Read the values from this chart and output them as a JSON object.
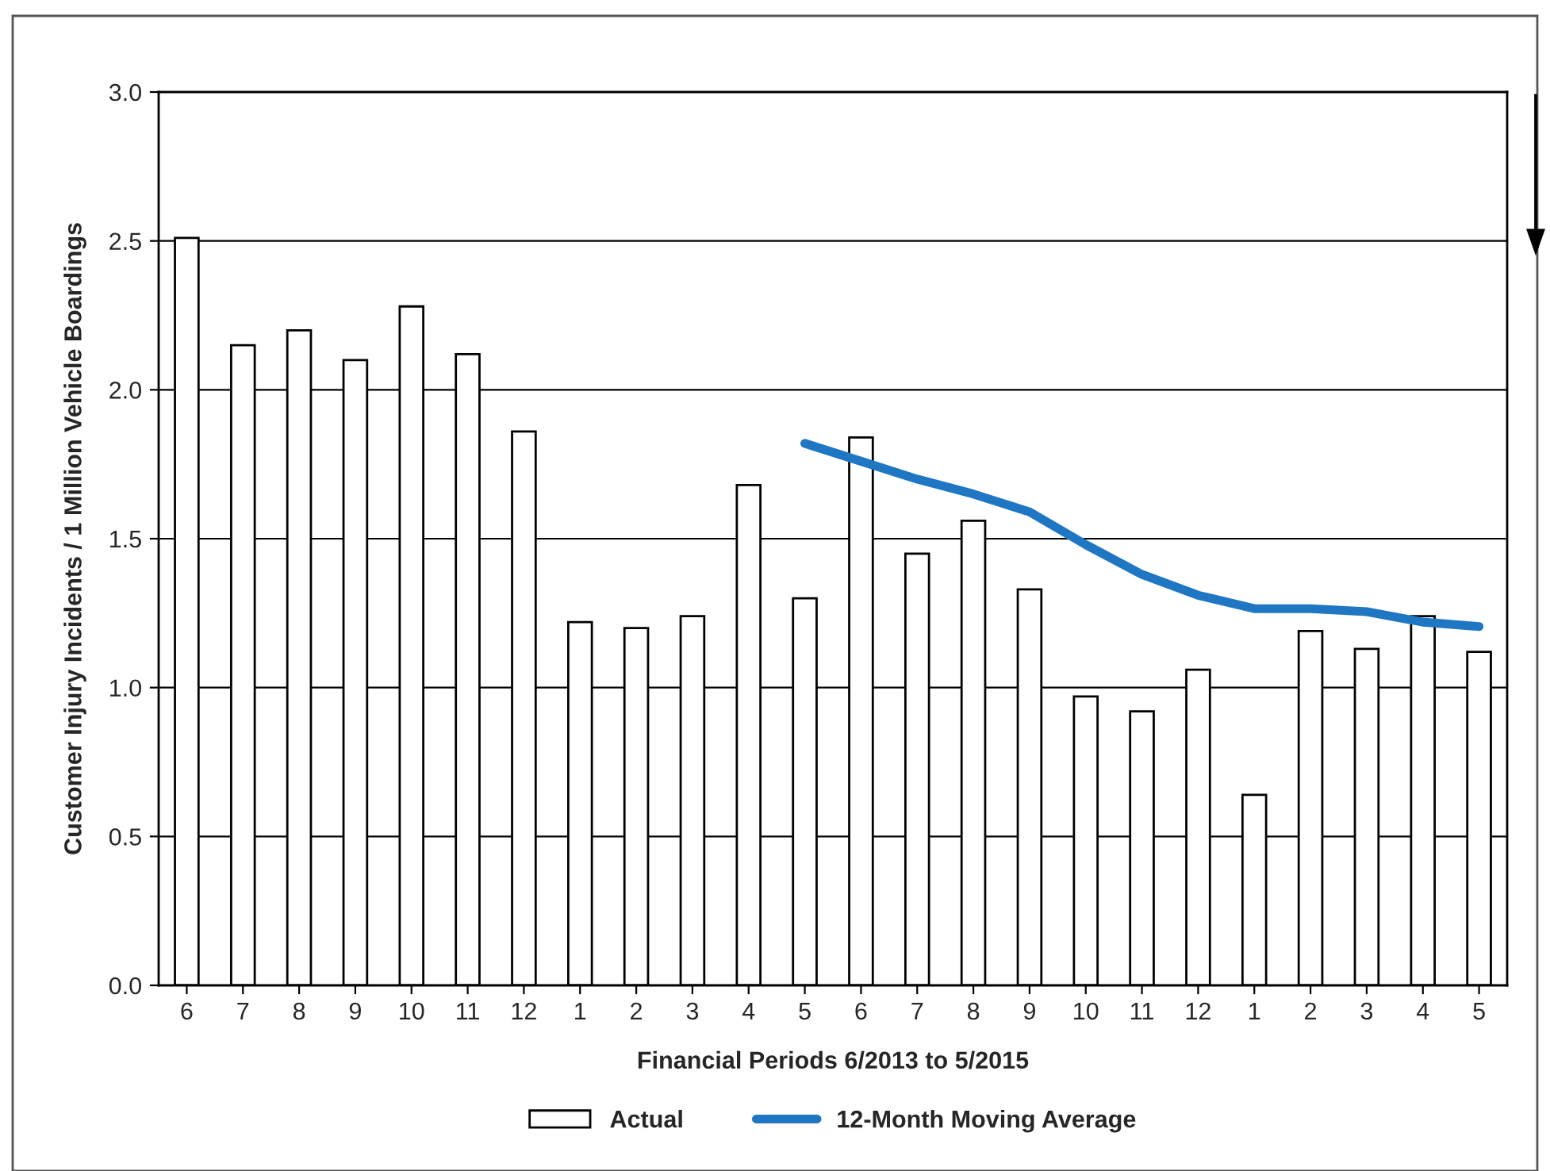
{
  "chart_data": {
    "type": "bar",
    "xlabel": "Financial Periods 6/2013 to 5/2015",
    "ylabel": "Customer Injury Incidents / 1 Million Vehicle Boardings",
    "categories": [
      "6",
      "7",
      "8",
      "9",
      "10",
      "11",
      "12",
      "1",
      "2",
      "3",
      "4",
      "5",
      "6",
      "7",
      "8",
      "9",
      "10",
      "11",
      "12",
      "1",
      "2",
      "3",
      "4",
      "5"
    ],
    "series": [
      {
        "name": "Actual",
        "color": "#ffffff",
        "values": [
          2.51,
          2.15,
          2.2,
          2.1,
          2.28,
          2.12,
          1.86,
          1.22,
          1.2,
          1.24,
          1.68,
          1.3,
          1.84,
          1.45,
          1.56,
          1.33,
          0.97,
          0.92,
          1.06,
          0.64,
          1.19,
          1.13,
          1.24,
          1.12
        ]
      },
      {
        "name": "12-Month Moving Average",
        "type": "line",
        "color": "#1f77c4",
        "values": [
          null,
          null,
          null,
          null,
          null,
          null,
          null,
          null,
          null,
          null,
          null,
          1.82,
          1.76,
          1.7,
          1.65,
          1.59,
          1.48,
          1.38,
          1.31,
          1.265,
          1.265,
          1.255,
          1.22,
          1.205
        ]
      }
    ],
    "ylim": [
      0,
      3.0
    ],
    "yticks": [
      {
        "value": 0,
        "label": "0.0"
      },
      {
        "value": 0.5,
        "label": "0.5"
      },
      {
        "value": 1.0,
        "label": "1.0"
      },
      {
        "value": 1.5,
        "label": "1.5"
      },
      {
        "value": 2.0,
        "label": "2.0"
      },
      {
        "value": 2.5,
        "label": "2.5"
      },
      {
        "value": 3.0,
        "label": "3.0"
      }
    ],
    "grid": "y",
    "legend": "bottom"
  }
}
